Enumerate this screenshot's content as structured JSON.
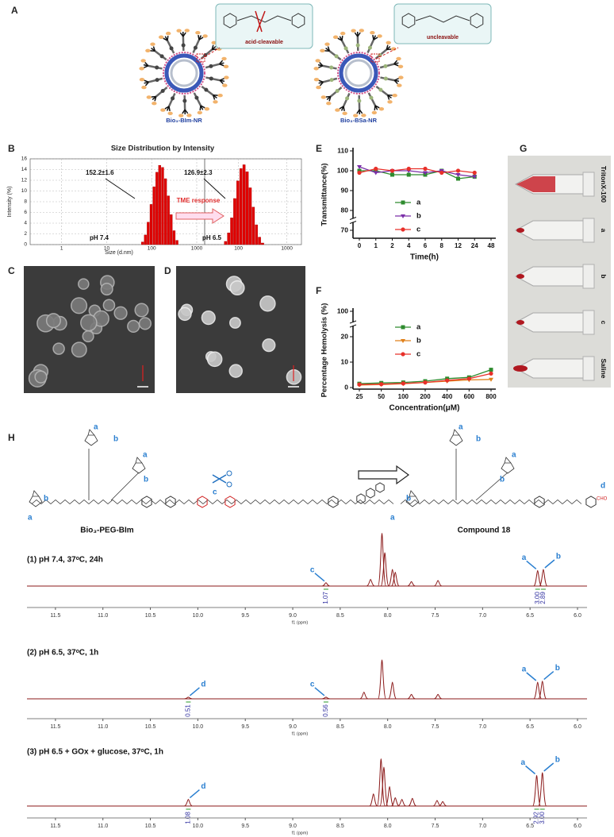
{
  "panel_labels": [
    "A",
    "B",
    "C",
    "D",
    "E",
    "F",
    "G",
    "H"
  ],
  "nanoparticles": [
    {
      "linker": "acid-cleavable",
      "name": "Bio₃-BIm-NR"
    },
    {
      "linker": "uncleavable",
      "name": "Bio₃-BSa-NR"
    }
  ],
  "size_distribution": {
    "type": "histogram",
    "title": "Size Distribution by Intensity",
    "xlabel": "Size (d.nm)",
    "ylabel": "Intensity (%)",
    "ylim": [
      0,
      16
    ],
    "yticks": [
      0,
      2,
      4,
      6,
      8,
      10,
      12,
      14,
      16
    ],
    "color": "#e00000",
    "grid": true,
    "log_x": true,
    "transition_label": "TME response",
    "panels": [
      {
        "xlim": [
          0.2,
          1500
        ],
        "xticks": [
          1,
          10,
          100,
          1000
        ],
        "bins": [
          58.8,
          68.1,
          78.8,
          91.3,
          105.7,
          122.4,
          141.8,
          164.2,
          190.1,
          220.2,
          255.0,
          295.3,
          342.0,
          396.1
        ],
        "values": [
          0.5,
          1.8,
          4.2,
          7.5,
          10.8,
          13.5,
          14.8,
          14.4,
          12.3,
          9.1,
          5.6,
          2.6,
          0.8
        ],
        "size_label": "152.2±1.6",
        "condition": "pH 7.4"
      },
      {
        "xlim": [
          20,
          2000
        ],
        "xticks": [
          100,
          1000
        ],
        "bins": [
          50.7,
          58.8,
          68.1,
          78.8,
          91.3,
          105.7,
          122.4,
          141.8,
          164.2,
          190.1,
          220.2,
          255.0,
          295.3,
          342.0
        ],
        "values": [
          0.6,
          2.2,
          5.0,
          8.6,
          11.9,
          14.2,
          14.9,
          13.6,
          10.6,
          7.0,
          3.7,
          1.4,
          0.3
        ],
        "size_label": "126.9±2.3",
        "condition": "pH 6.5"
      }
    ]
  },
  "transmittance": {
    "type": "line",
    "xlabel": "Time(h)",
    "ylabel": "Transmittance(%)",
    "categories": [
      "0",
      "1",
      "2",
      "4",
      "6",
      "8",
      "12",
      "24",
      "48"
    ],
    "ylim": [
      70,
      110
    ],
    "yticks": [
      70,
      80,
      90,
      100,
      110
    ],
    "axis_break": true,
    "series": [
      {
        "name": "a",
        "color": "#2e8b2e",
        "values": [
          100,
          100,
          98,
          98,
          98,
          100,
          96,
          97,
          null
        ]
      },
      {
        "name": "b",
        "color": "#7b2fa8",
        "values": [
          102,
          99,
          100,
          100,
          99,
          100,
          98,
          97,
          null
        ]
      },
      {
        "name": "c",
        "color": "#e8302a",
        "values": [
          99,
          101,
          100,
          101,
          101,
          99,
          100,
          99,
          null
        ]
      }
    ]
  },
  "hemolysis": {
    "type": "line",
    "xlabel": "Concentration(μM)",
    "ylabel": "Percentage Hemolysis (%)",
    "categories": [
      "25",
      "50",
      "100",
      "200",
      "400",
      "600",
      "800"
    ],
    "ylim": [
      0,
      100
    ],
    "yticks": [
      0,
      10,
      20,
      100
    ],
    "axis_break": true,
    "series": [
      {
        "name": "a",
        "color": "#2e8b2e",
        "values": [
          1.5,
          1.8,
          2.0,
          2.5,
          3.5,
          4.0,
          7.0
        ]
      },
      {
        "name": "b",
        "color": "#e0801a",
        "values": [
          1.0,
          1.2,
          1.5,
          2.0,
          2.5,
          3.0,
          3.2
        ]
      },
      {
        "name": "c",
        "color": "#e8302a",
        "values": [
          1.2,
          1.3,
          1.6,
          2.0,
          2.8,
          3.5,
          5.5
        ]
      }
    ]
  },
  "vials": [
    "TritonX-100",
    "a",
    "b",
    "c",
    "Saline"
  ],
  "synthesis": {
    "reactant": "Bio₃-PEG-BIm",
    "product": "Compound 18",
    "aldehyde": "CHO",
    "site_labels": [
      "a",
      "b",
      "a",
      "b",
      "b",
      "a",
      "c",
      "a",
      "b",
      "a",
      "b",
      "b",
      "a",
      "d"
    ]
  },
  "nmr": {
    "xlabel": "f1 (ppm)",
    "xlim": [
      11.8,
      6.0
    ],
    "color": "#8b1a1a",
    "xticks": [
      11.5,
      {
        "value": 11,
        "label": "11.0"
      },
      10.5,
      {
        "value": 10,
        "label": "10.0"
      },
      9.5,
      {
        "value": 9,
        "label": "9.0"
      },
      8.5,
      {
        "value": 8,
        "label": "8.0"
      },
      7.5,
      {
        "value": 7,
        "label": "7.0"
      },
      6.5,
      {
        "value": 6,
        "label": "6.0"
      }
    ],
    "spectra": [
      {
        "label": "(1) pH 7.4, 37ᵒC, 24h",
        "x": [
          8.65,
          8.18,
          8.06,
          8.03,
          7.95,
          7.92,
          7.75,
          7.47,
          6.42,
          6.36
        ],
        "values": [
          6,
          12,
          95,
          60,
          30,
          25,
          8,
          10,
          28,
          30
        ],
        "annotations": [
          {
            "ppm": 8.65,
            "label": "c"
          },
          {
            "ppm": 6.42,
            "label": "a"
          },
          {
            "ppm": 6.36,
            "label": "b"
          }
        ],
        "integrals": [
          {
            "ppm": 8.65,
            "label": "1.07"
          },
          {
            "ppm": 6.42,
            "label": "3.00"
          },
          {
            "ppm": 6.36,
            "label": "2.89"
          }
        ]
      },
      {
        "label": "(2) pH 6.5, 37ᵒC, 1h",
        "x": [
          10.1,
          8.65,
          8.25,
          8.06,
          7.95,
          7.75,
          7.47,
          6.42,
          6.37
        ],
        "values": [
          3,
          3,
          12,
          70,
          30,
          8,
          8,
          30,
          32
        ],
        "annotations": [
          {
            "ppm": 10.1,
            "label": "d"
          },
          {
            "ppm": 8.65,
            "label": "c"
          },
          {
            "ppm": 6.42,
            "label": "a"
          },
          {
            "ppm": 6.37,
            "label": "b"
          }
        ],
        "integrals": [
          {
            "ppm": 10.1,
            "label": "0.51"
          },
          {
            "ppm": 8.65,
            "label": "0.56"
          }
        ]
      },
      {
        "label": "(3) pH 6.5 + GOx + glucose, 37ᵒC, 1h",
        "x": [
          10.1,
          8.15,
          8.07,
          8.04,
          7.98,
          7.92,
          7.85,
          7.74,
          7.48,
          7.42,
          6.43,
          6.37
        ],
        "values": [
          12,
          22,
          85,
          70,
          35,
          15,
          12,
          14,
          10,
          8,
          55,
          60
        ],
        "annotations": [
          {
            "ppm": 10.1,
            "label": "d"
          },
          {
            "ppm": 6.43,
            "label": "a"
          },
          {
            "ppm": 6.37,
            "label": "b"
          }
        ],
        "integrals": [
          {
            "ppm": 10.1,
            "label": "1.08"
          },
          {
            "ppm": 6.43,
            "label": "2.92"
          },
          {
            "ppm": 6.37,
            "label": "3.00"
          }
        ]
      }
    ]
  }
}
